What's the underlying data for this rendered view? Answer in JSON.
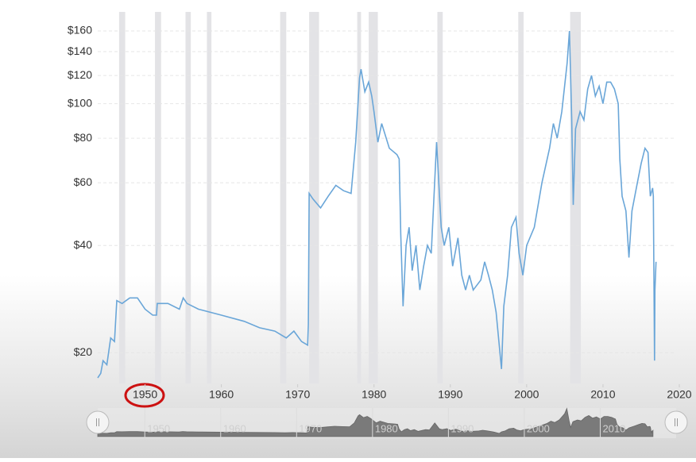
{
  "chart_data": {
    "type": "line",
    "log_scale": true,
    "grid": true,
    "color": "#6aa6d8",
    "x": [
      1943.8,
      1944.2,
      1944.5,
      1945,
      1945.5,
      1946,
      1946.3,
      1947,
      1948,
      1949,
      1950,
      1951,
      1951.5,
      1951.6,
      1953,
      1954.5,
      1955,
      1955.5,
      1957,
      1960,
      1963,
      1965,
      1967,
      1968.5,
      1969.5,
      1970.5,
      1971.3,
      1971.4,
      1971.5,
      1972,
      1973,
      1974,
      1975,
      1976,
      1977,
      1977.6,
      1978.1,
      1978.3,
      1978.8,
      1979.3,
      1979.7,
      1980,
      1980.5,
      1981,
      1982,
      1983,
      1983.3,
      1983.5,
      1983.8,
      1984.2,
      1984.6,
      1985,
      1985.5,
      1986,
      1986.5,
      1987,
      1987.5,
      1988.2,
      1988.8,
      1989.2,
      1989.8,
      1990.3,
      1991,
      1991.5,
      1992,
      1992.5,
      1993,
      1994,
      1994.5,
      1995,
      1995.5,
      1996,
      1996.7,
      1997,
      1997.5,
      1998,
      1998.6,
      1999,
      1999.5,
      2000,
      2001,
      2002,
      2003,
      2003.5,
      2004,
      2004.6,
      2005.3,
      2005.6,
      2005.9,
      2006.1,
      2006.4,
      2007,
      2007.5,
      2008,
      2008.5,
      2009,
      2009.5,
      2010,
      2010.5,
      2011,
      2011.5,
      2012,
      2012.2,
      2012.5,
      2013,
      2013.4,
      2013.8,
      2014.5,
      2015,
      2015.5,
      2015.9,
      2016.2,
      2016.5,
      2016.6,
      2016.75,
      2016.8,
      2016.95
    ],
    "values": [
      17,
      17.5,
      19,
      18.5,
      22,
      21.5,
      28,
      27.5,
      28.5,
      28.5,
      26.5,
      25.5,
      25.5,
      27.5,
      27.5,
      26.5,
      28.5,
      27.5,
      26.5,
      25.5,
      24.5,
      23.5,
      23,
      22,
      23,
      21.5,
      21,
      24,
      56,
      54,
      51,
      55,
      59,
      57,
      56,
      78,
      118,
      125,
      108,
      115,
      105,
      95,
      78,
      88,
      75,
      72,
      70,
      43,
      27,
      40,
      45,
      34,
      40,
      30,
      35,
      40,
      38,
      78,
      45,
      40,
      45,
      35,
      42,
      33,
      30,
      33,
      30,
      32,
      36,
      33,
      30,
      26,
      18,
      27,
      33,
      45,
      48,
      38,
      33,
      40,
      45,
      60,
      75,
      88,
      80,
      95,
      130,
      160,
      90,
      52,
      85,
      95,
      90,
      110,
      120,
      105,
      112,
      100,
      115,
      115,
      110,
      100,
      70,
      55,
      50,
      37,
      50,
      60,
      68,
      75,
      73,
      55,
      58,
      55,
      19,
      30,
      36
    ],
    "recessions": [
      [
        1946.6,
        1947.4
      ],
      [
        1951.3,
        1952.1
      ],
      [
        1955.3,
        1956.0
      ],
      [
        1958.1,
        1958.7
      ],
      [
        1967.7,
        1968.5
      ],
      [
        1971.5,
        1972.8
      ],
      [
        1977.8,
        1978.3
      ],
      [
        1979.3,
        1980.5
      ],
      [
        1988.3,
        1989.0
      ],
      [
        1998.9,
        1999.6
      ],
      [
        2005.7,
        2007.1
      ]
    ],
    "xlim": [
      1943.8,
      2020
    ],
    "xticks": [
      1950,
      1960,
      1970,
      1980,
      1990,
      2000,
      2010,
      2020
    ],
    "ylim": [
      16.4,
      181
    ],
    "yticks": [
      {
        "value": 20,
        "label": "$20"
      },
      {
        "value": 40,
        "label": "$40"
      },
      {
        "value": 60,
        "label": "$60"
      },
      {
        "value": 80,
        "label": "$80"
      },
      {
        "value": 100,
        "label": "$100"
      },
      {
        "value": 120,
        "label": "$120"
      },
      {
        "value": 140,
        "label": "$140"
      },
      {
        "value": 160,
        "label": "$160"
      }
    ]
  }
}
